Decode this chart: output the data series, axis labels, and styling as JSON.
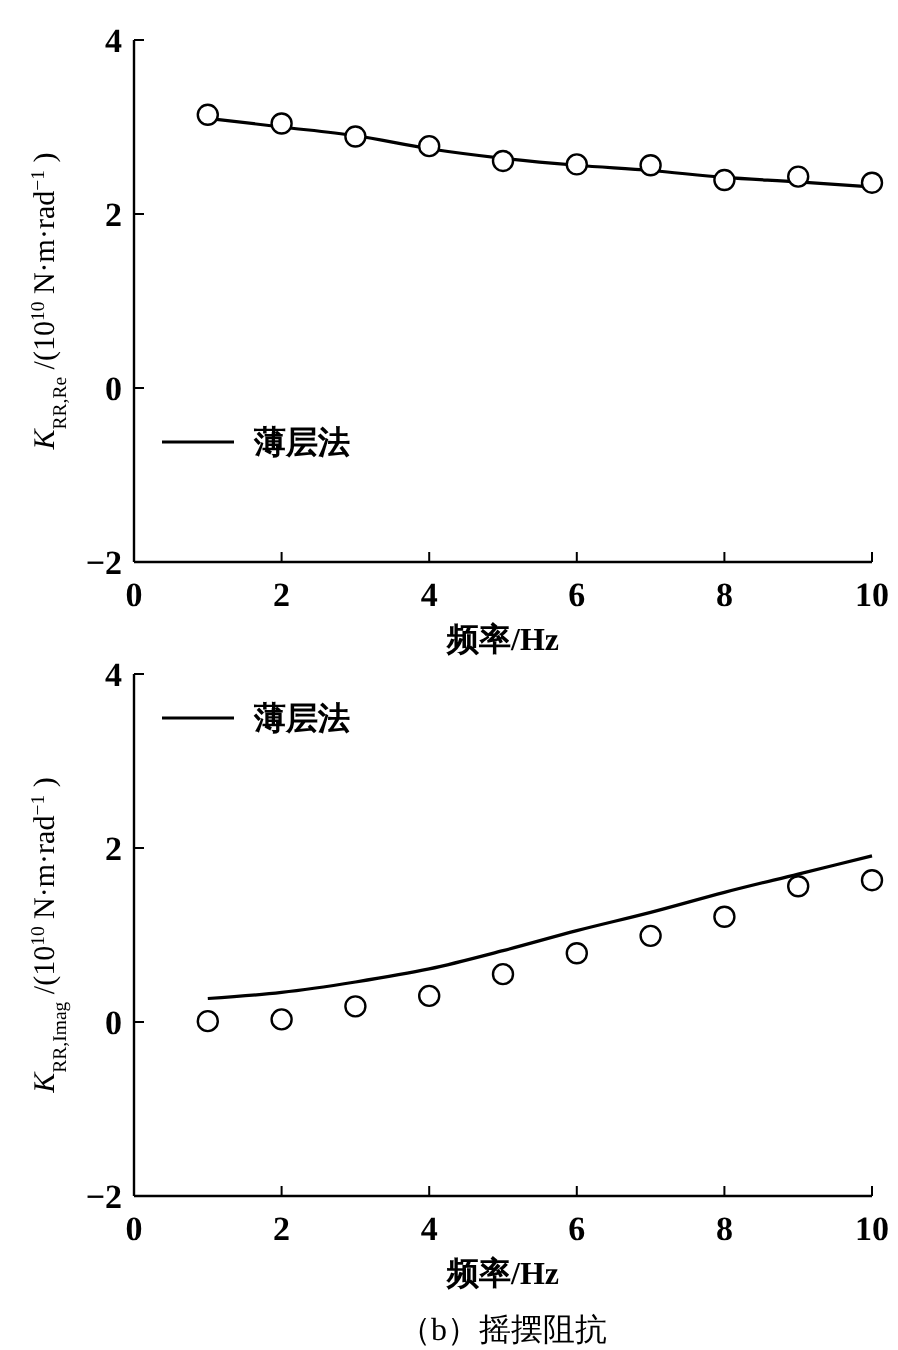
{
  "chart_data": [
    {
      "type": "line",
      "xlabel": "频率/Hz",
      "ylabel": "K$_{RR,Re}$/(10$^{10}$N·m·rad$^{−1}$)",
      "xlim": [
        0,
        10
      ],
      "xticks": [
        0,
        2,
        4,
        6,
        8,
        10
      ],
      "ylim": [
        -2,
        4
      ],
      "yticks": [
        -2,
        0,
        2,
        4
      ],
      "legend": "bottom left",
      "x": [
        1,
        2,
        3,
        4,
        5,
        6,
        7,
        8,
        9,
        10
      ],
      "series": [
        {
          "name": "薄层法",
          "color": "#000000",
          "line_style": "solid",
          "marker": "none",
          "values": [
            3.1,
            3.0,
            2.9,
            2.75,
            2.64,
            2.56,
            2.5,
            2.42,
            2.37,
            2.31
          ]
        },
        {
          "type": "scatter",
          "color": "#000000",
          "marker": "circle",
          "values": [
            3.14,
            3.04,
            2.89,
            2.78,
            2.61,
            2.57,
            2.56,
            2.39,
            2.43,
            2.36
          ]
        }
      ]
    },
    {
      "type": "line",
      "xlabel": "频率/Hz",
      "ylabel": "K$_{RR,Imag}$/(10$^{10}$N·m·rad$^{−1}$)",
      "xlim": [
        0,
        10
      ],
      "xticks": [
        0,
        2,
        4,
        6,
        8,
        10
      ],
      "ylim": [
        -2,
        4
      ],
      "yticks": [
        -2,
        0,
        2,
        4
      ],
      "legend": "top left",
      "x": [
        1,
        2,
        3,
        4,
        5,
        6,
        7,
        8,
        9,
        10
      ],
      "annotations": [
        "（b）摇摆阻抗"
      ],
      "series": [
        {
          "name": "薄层法",
          "color": "#000000",
          "line_style": "solid",
          "marker": "none",
          "values": [
            0.27,
            0.34,
            0.46,
            0.61,
            0.82,
            1.05,
            1.26,
            1.49,
            1.7,
            1.91
          ]
        },
        {
          "type": "scatter",
          "color": "#000000",
          "marker": "circle",
          "values": [
            0.01,
            0.03,
            0.18,
            0.3,
            0.55,
            0.79,
            0.99,
            1.21,
            1.56,
            1.63
          ]
        }
      ]
    }
  ]
}
